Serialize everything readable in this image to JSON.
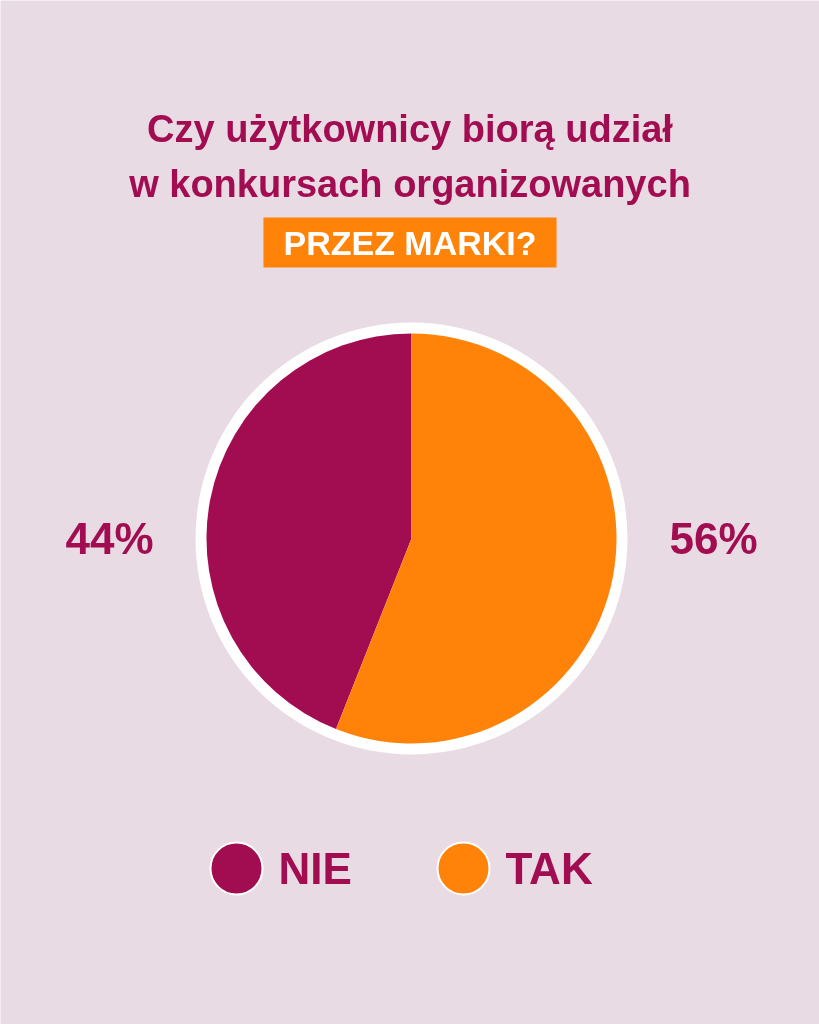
{
  "chart_data": {
    "type": "pie",
    "title": "Czy użytkownicy biorą udział w konkursach organizowanych",
    "subtitle": "PRZEZ MARKI?",
    "categories": [
      "NIE",
      "TAK"
    ],
    "values": [
      44,
      56
    ],
    "colors": [
      "#a20d52",
      "#ff8308"
    ],
    "value_labels": [
      "44%",
      "56%"
    ],
    "legend": "bottom"
  }
}
